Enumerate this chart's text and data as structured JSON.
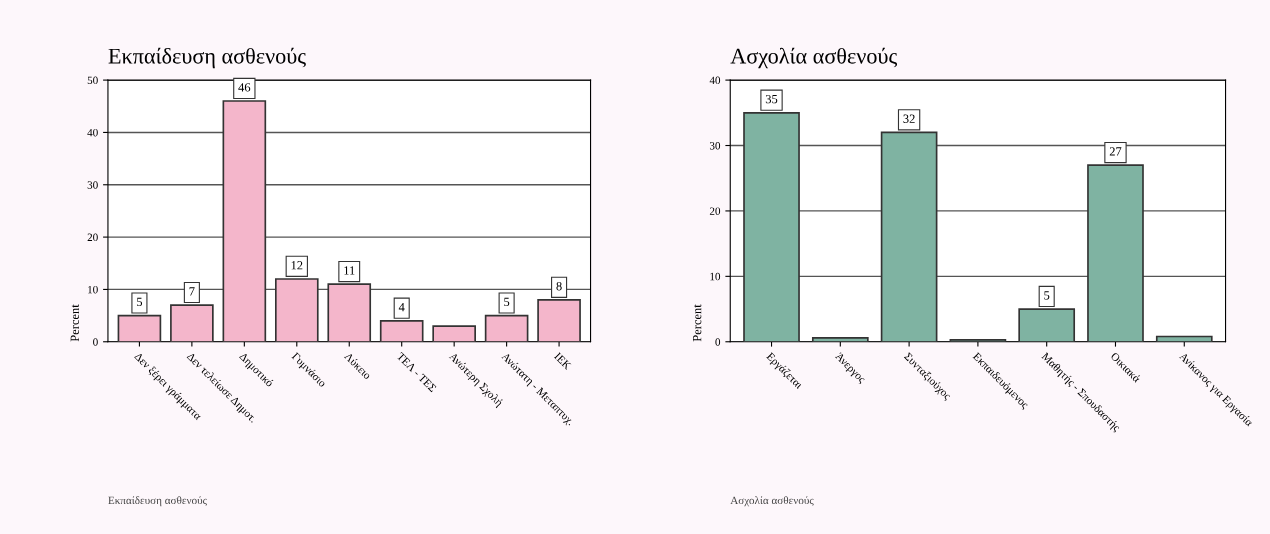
{
  "chart_data": [
    {
      "type": "bar",
      "title": "Εκπαίδευση ασθενούς",
      "ylabel": "Percent",
      "categories": [
        "Δεν ξέρει γράμματα",
        "Δεν τελείωσε Δημοτ.",
        "Δημοτικό",
        "Γυμνάσιο",
        "Λύκειο",
        "ΤΕΛ - ΤΕΣ",
        "Ανώτερη Σχολή",
        "Ανώτατη - Μεταπτυχ.",
        "ΙΕΚ"
      ],
      "values": [
        5,
        7,
        46,
        12,
        11,
        4,
        3,
        5,
        8
      ],
      "value_labels": [
        "5",
        "7",
        "46",
        "12",
        "11",
        "4",
        null,
        "5",
        "8"
      ],
      "color": "#f4b6cb",
      "ylim": [
        0,
        50
      ],
      "yticks": [
        0,
        10,
        20,
        30,
        40,
        50
      ],
      "grid": "y",
      "annotations": [
        "Εκπαίδευση ασθενούς"
      ]
    },
    {
      "type": "bar",
      "title": "Ασχολία ασθενούς",
      "ylabel": "Percent",
      "categories": [
        "Εργάζεται",
        "Άνεργος",
        "Συνταξιούχος",
        "Εκπαιδευόμενος",
        "Μαθητής - Σπουδαστής",
        "Οικιακά",
        "Ανίκανος για Εργασία"
      ],
      "values": [
        35,
        0.6,
        32,
        0.3,
        5,
        27,
        0.8
      ],
      "value_labels": [
        "35",
        null,
        "32",
        null,
        "5",
        "27",
        null
      ],
      "color": "#7fb3a2",
      "ylim": [
        0,
        40
      ],
      "yticks": [
        0,
        10,
        20,
        30,
        40
      ],
      "grid": "y",
      "annotations": [
        "Ασχολία ασθενούς"
      ]
    }
  ]
}
